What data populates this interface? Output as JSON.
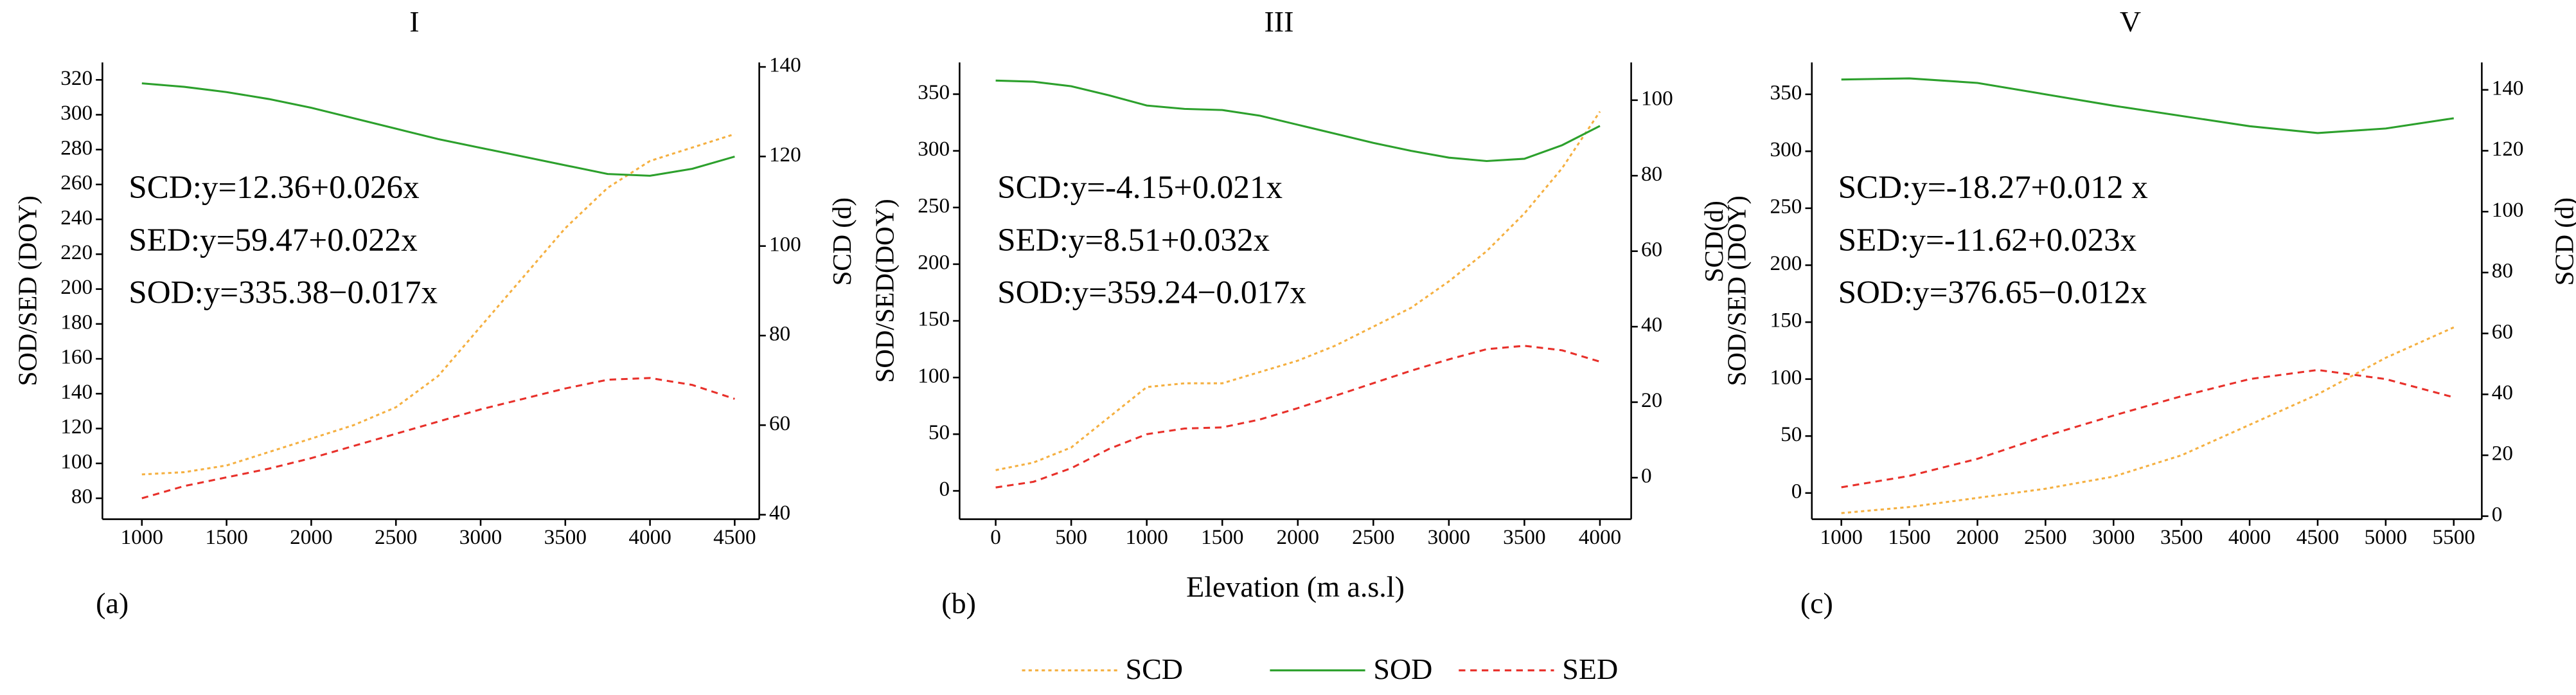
{
  "chart_data": [
    {
      "type": "line",
      "title": "I",
      "panel_label": "(a)",
      "annotations": [
        "SCD:y=12.36+0.026x",
        "SED:y=59.47+0.022x",
        "SOD:y=335.38−0.017x"
      ],
      "ylabel": "SOD/SED (DOY)",
      "y2label": "SCD (d)",
      "x": [
        1000,
        1250,
        1500,
        1750,
        2000,
        2250,
        2500,
        2750,
        3000,
        3250,
        3500,
        3750,
        4000,
        4250,
        4500
      ],
      "xlim": [
        767,
        4645
      ],
      "xticks": [
        1000,
        1500,
        2000,
        2500,
        3000,
        3500,
        4000,
        4500
      ],
      "ylim": [
        68,
        330
      ],
      "yticks": [
        80,
        100,
        120,
        140,
        160,
        180,
        200,
        220,
        240,
        260,
        280,
        300,
        320
      ],
      "y2lim": [
        39,
        141
      ],
      "y2ticks": [
        40,
        60,
        80,
        100,
        120,
        140
      ],
      "series": [
        {
          "name": "SCD",
          "color": "#f5b041",
          "dash": "dot",
          "axis": "y2",
          "values": [
            49,
            49.5,
            51,
            54,
            57,
            60,
            64,
            71,
            82,
            93,
            104,
            113,
            119,
            122,
            125
          ]
        },
        {
          "name": "SOD",
          "color": "#2ca02c",
          "dash": "solid",
          "values": [
            318,
            316,
            313,
            309,
            304,
            298,
            292,
            286,
            281,
            276,
            271,
            266,
            265,
            269,
            276
          ]
        },
        {
          "name": "SED",
          "color": "#e8302a",
          "dash": "dash",
          "values": [
            80,
            87,
            92,
            97,
            103,
            110,
            117,
            124,
            131,
            137,
            143,
            148,
            149,
            145,
            137
          ]
        }
      ]
    },
    {
      "type": "line",
      "title": "III",
      "panel_label": "(b)",
      "xlabel": "Elevation   (m a.s.l)",
      "annotations": [
        "SCD:y=-4.15+0.021x",
        "SED:y=8.51+0.032x",
        "SOD:y=359.24−0.017x"
      ],
      "ylabel": "SOD/SED(DOY)",
      "y2label": "SCD(d)",
      "x": [
        0,
        250,
        500,
        750,
        1000,
        1250,
        1500,
        1750,
        2000,
        2250,
        2500,
        2750,
        3000,
        3250,
        3500,
        3750,
        4000
      ],
      "xlim": [
        -239,
        4207
      ],
      "xticks": [
        0,
        500,
        1000,
        1500,
        2000,
        2500,
        3000,
        3500,
        4000
      ],
      "ylim": [
        -25,
        378
      ],
      "yticks": [
        0,
        50,
        100,
        150,
        200,
        250,
        300,
        350
      ],
      "y2lim": [
        -11,
        110
      ],
      "y2ticks": [
        0,
        20,
        40,
        60,
        80,
        100
      ],
      "series": [
        {
          "color": "#f5b041",
          "dash": "dot",
          "axis": "y2",
          "values": [
            2,
            4,
            8,
            16,
            24,
            25,
            25,
            28,
            31,
            35,
            40,
            45,
            52,
            60,
            70,
            82,
            97
          ]
        },
        {
          "color": "#2ca02c",
          "dash": "solid",
          "values": [
            362,
            361,
            357,
            349,
            340,
            337,
            336,
            331,
            323,
            315,
            307,
            300,
            294,
            291,
            293,
            305,
            322
          ]
        },
        {
          "color": "#e8302a",
          "dash": "dash",
          "values": [
            3,
            8,
            20,
            37,
            50,
            55,
            56,
            63,
            73,
            84,
            95,
            106,
            116,
            125,
            128,
            124,
            114
          ]
        }
      ]
    },
    {
      "type": "line",
      "title": "V",
      "panel_label": "(c)",
      "annotations": [
        "SCD:y=-18.27+0.012 x",
        "SED:y=-11.62+0.023x",
        "SOD:y=376.65−0.012x"
      ],
      "ylabel": "SOD/SED (DOY)",
      "y2label": "SCD (d)",
      "x": [
        1000,
        1500,
        2000,
        2500,
        3000,
        3500,
        4000,
        4500,
        5000,
        5500
      ],
      "xlim": [
        783,
        5706
      ],
      "xticks": [
        1000,
        1500,
        2000,
        2500,
        3000,
        3500,
        4000,
        4500,
        5000,
        5500
      ],
      "ylim": [
        -23,
        378
      ],
      "yticks": [
        0,
        50,
        100,
        150,
        200,
        250,
        300,
        350
      ],
      "y2lim": [
        -1,
        149
      ],
      "y2ticks": [
        0,
        20,
        40,
        60,
        80,
        100,
        120,
        140
      ],
      "series": [
        {
          "color": "#f5b041",
          "dash": "dot",
          "axis": "y2",
          "values": [
            1,
            3,
            6,
            9,
            13,
            20,
            30,
            40,
            52,
            62
          ]
        },
        {
          "color": "#2ca02c",
          "dash": "solid",
          "values": [
            363,
            364,
            360,
            350,
            340,
            331,
            322,
            316,
            320,
            329
          ]
        },
        {
          "color": "#e8302a",
          "dash": "dash",
          "values": [
            5,
            15,
            30,
            50,
            68,
            85,
            100,
            108,
            100,
            84
          ]
        }
      ]
    }
  ]
}
